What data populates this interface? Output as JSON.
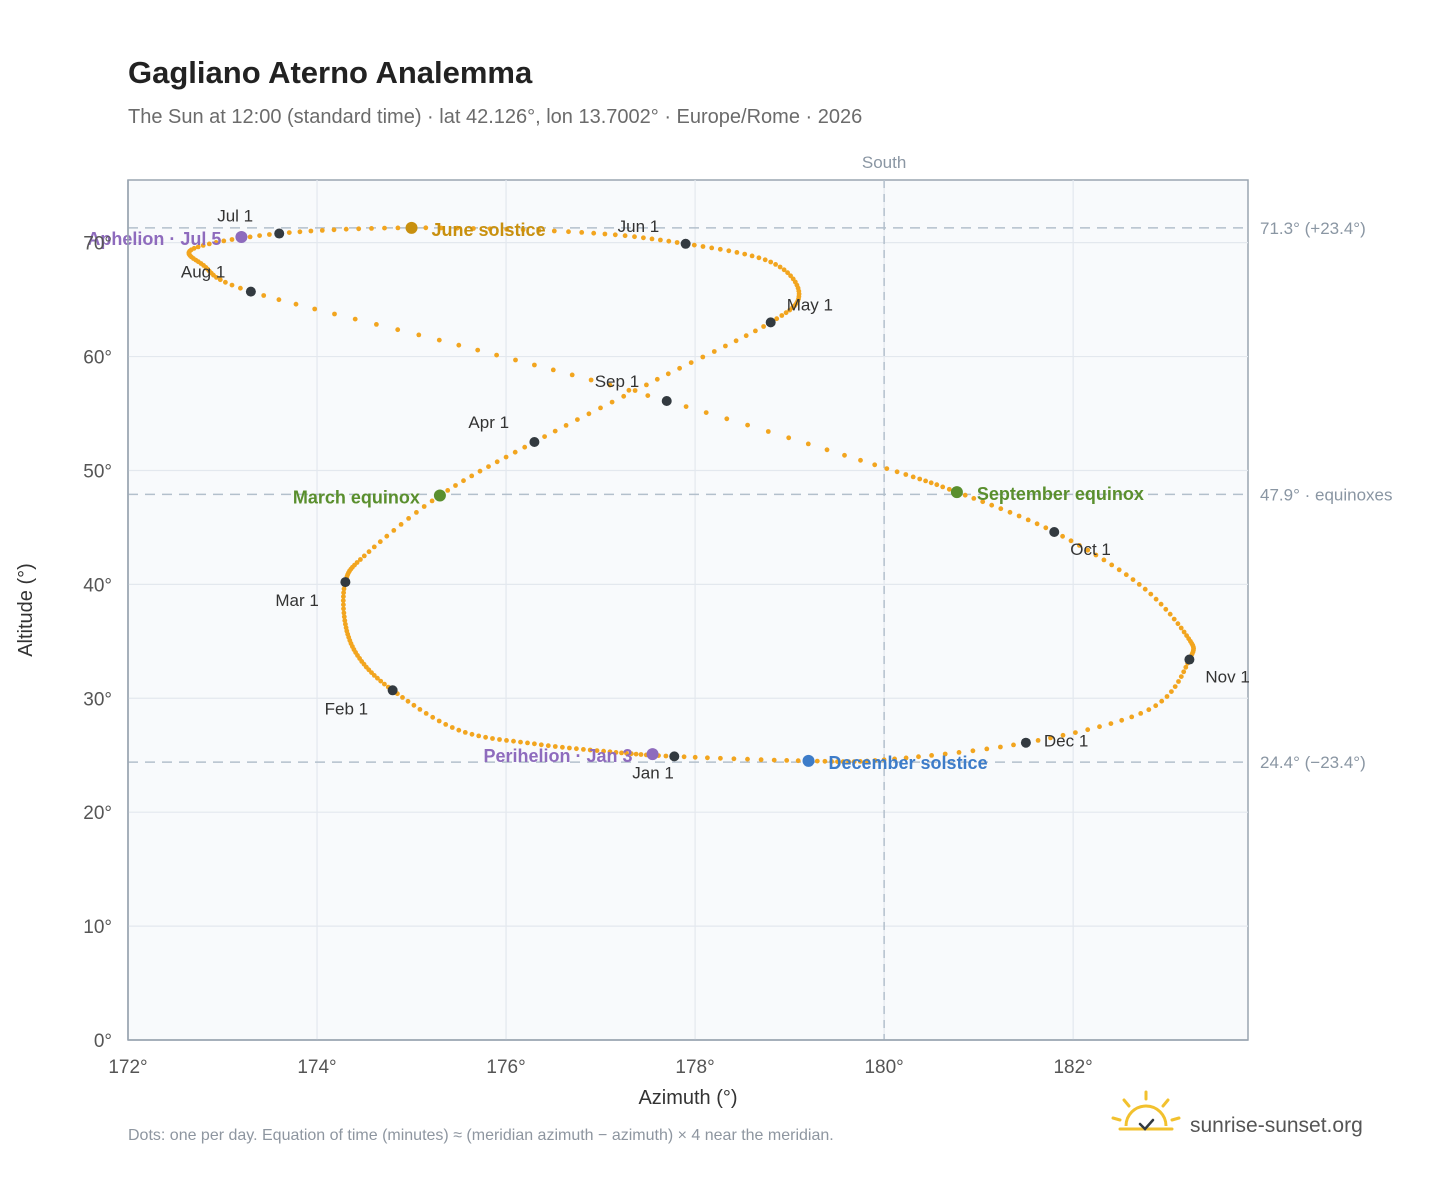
{
  "header": {
    "title": "Gagliano Aterno Analemma",
    "subtitle": "The Sun at 12:00 (standard time) · lat 42.126°, lon 13.7002° · Europe/Rome · 2026"
  },
  "footer": {
    "note": "Dots: one per day. Equation of time (minutes) ≈ (meridian azimuth − azimuth) × 4 near the meridian.",
    "brand": "sunrise-sunset.org",
    "brand_icon": "sun-logo-icon"
  },
  "colors": {
    "curve": "#f2a51f",
    "month_dot": "#333a40",
    "june_solstice": "#c8900f",
    "equinox": "#5a8f2e",
    "december_solstice": "#3d7cc9",
    "apsis": "#8e6bbd",
    "reference_line": "#b3c0cc",
    "plot_background": "#f8fafc"
  },
  "chart_data": {
    "type": "scatter",
    "xlabel": "Azimuth (°)",
    "ylabel": "Altitude (°)",
    "xlim": [
      172,
      183.85
    ],
    "ylim": [
      0,
      75.5
    ],
    "x_ticks": [
      "172°",
      "174°",
      "176°",
      "178°",
      "180°",
      "182°"
    ],
    "y_ticks": [
      "0°",
      "10°",
      "20°",
      "30°",
      "40°",
      "50°",
      "60°",
      "70°"
    ],
    "grid": true,
    "meridian": {
      "azimuth": 180,
      "label": "South"
    },
    "reference_lines": [
      {
        "altitude": 71.3,
        "label": "71.3° (+23.4°)"
      },
      {
        "altitude": 47.9,
        "label": "47.9° · equinoxes"
      },
      {
        "altitude": 24.4,
        "label": "24.4° (−23.4°)"
      }
    ],
    "series": [
      {
        "points": [
          [
            177.78,
            24.9
          ],
          [
            177.1,
            25.3
          ],
          [
            176.3,
            26.0
          ],
          [
            175.5,
            27.2
          ],
          [
            174.8,
            30.7
          ],
          [
            174.45,
            33.5
          ],
          [
            174.3,
            36.5
          ],
          [
            174.3,
            40.2
          ],
          [
            174.5,
            42.5
          ],
          [
            175.3,
            47.8
          ],
          [
            176.3,
            52.5
          ],
          [
            177.6,
            58.0
          ],
          [
            178.8,
            63.0
          ],
          [
            179.1,
            65.5
          ],
          [
            178.8,
            68.3
          ],
          [
            177.9,
            69.9
          ],
          [
            176.8,
            70.9
          ],
          [
            175.0,
            71.3
          ],
          [
            173.6,
            70.8
          ],
          [
            172.7,
            69.5
          ],
          [
            172.8,
            68.0
          ],
          [
            173.3,
            65.7
          ],
          [
            175.5,
            61.0
          ],
          [
            177.7,
            56.1
          ],
          [
            179.9,
            50.5
          ],
          [
            180.77,
            48.1
          ],
          [
            181.8,
            44.6
          ],
          [
            182.7,
            40.0
          ],
          [
            183.2,
            35.5
          ],
          [
            183.23,
            33.4
          ],
          [
            182.8,
            29.0
          ],
          [
            181.5,
            26.1
          ],
          [
            180.0,
            24.6
          ],
          [
            179.2,
            24.5
          ],
          [
            177.78,
            24.9
          ]
        ]
      }
    ],
    "month_markers": [
      {
        "label": "Jan 1",
        "x": 177.78,
        "y": 24.9
      },
      {
        "label": "Feb 1",
        "x": 174.8,
        "y": 30.7
      },
      {
        "label": "Mar 1",
        "x": 174.3,
        "y": 40.2
      },
      {
        "label": "Apr 1",
        "x": 176.3,
        "y": 52.5
      },
      {
        "label": "May 1",
        "x": 178.8,
        "y": 63.0
      },
      {
        "label": "Jun 1",
        "x": 177.9,
        "y": 69.9
      },
      {
        "label": "Jul 1",
        "x": 173.6,
        "y": 70.8
      },
      {
        "label": "Aug 1",
        "x": 173.3,
        "y": 65.7
      },
      {
        "label": "Sep 1",
        "x": 177.7,
        "y": 56.1
      },
      {
        "label": "Oct 1",
        "x": 181.8,
        "y": 44.6
      },
      {
        "label": "Nov 1",
        "x": 183.23,
        "y": 33.4
      },
      {
        "label": "Dec 1",
        "x": 181.5,
        "y": 26.1
      }
    ],
    "events": [
      {
        "label": "June solstice",
        "x": 175.0,
        "y": 71.3,
        "kind": "june_solstice"
      },
      {
        "label": "March equinox",
        "x": 175.3,
        "y": 47.8,
        "kind": "equinox"
      },
      {
        "label": "September equinox",
        "x": 180.77,
        "y": 48.1,
        "kind": "equinox"
      },
      {
        "label": "December solstice",
        "x": 179.2,
        "y": 24.5,
        "kind": "december_solstice"
      },
      {
        "label": "Aphelion · Jul 5",
        "x": 173.2,
        "y": 70.5,
        "kind": "apsis"
      },
      {
        "label": "Perihelion · Jan 3",
        "x": 177.55,
        "y": 25.1,
        "kind": "apsis"
      }
    ]
  }
}
